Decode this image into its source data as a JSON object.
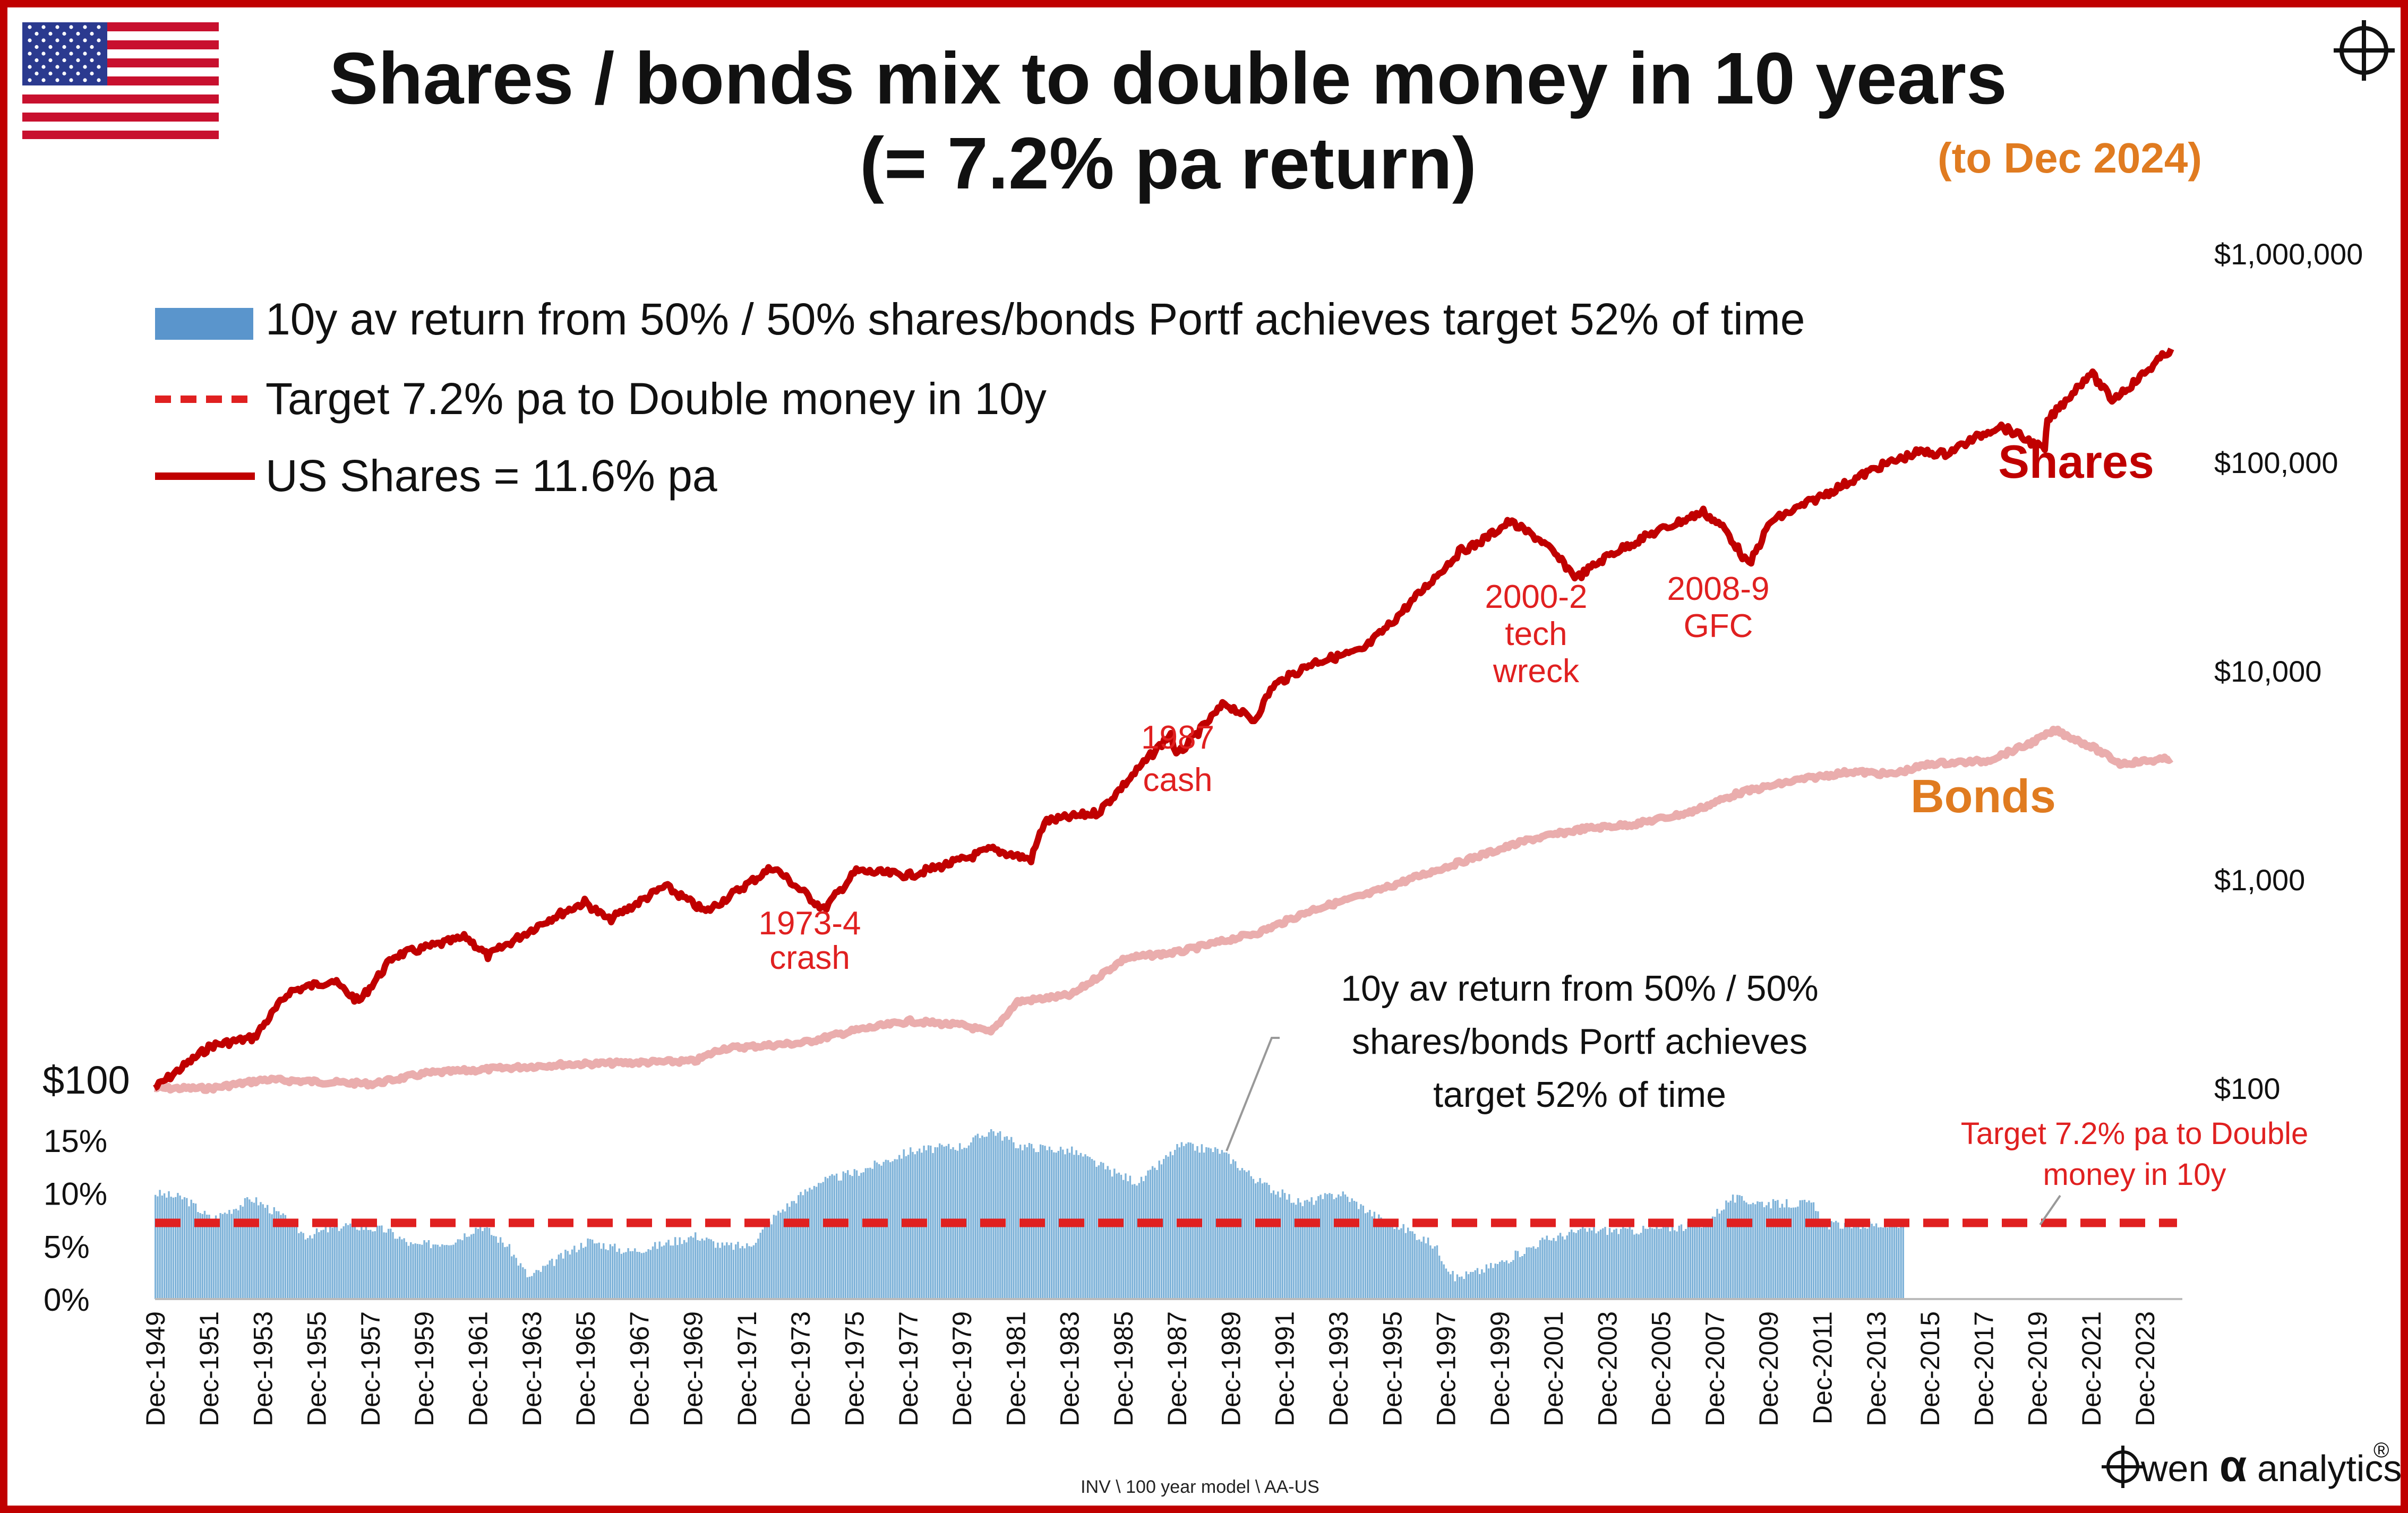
{
  "title_line1": "Shares / bonds mix to double money in 10 years",
  "title_line2": "(= 7.2% pa return)",
  "subtitle": "(to Dec 2024)",
  "legend": {
    "bars": "10y av return from 50% / 50% shares/bonds Portf  achieves target  52% of time",
    "target": "Target 7.2% pa to Double money in 10y",
    "shares": "US Shares = 11.6% pa"
  },
  "labels": {
    "shares": "Shares",
    "bonds": "Bonds",
    "start_value": "$100",
    "callout_bars": [
      "10y av return from 50% / 50%",
      "shares/bonds Portf  achieves",
      "target  52% of time"
    ],
    "callout_target": [
      "Target 7.2% pa to Double",
      "money in 10y"
    ],
    "crash_1973": [
      "1973-4",
      "crash"
    ],
    "crash_1987": [
      "1987",
      "cash"
    ],
    "crash_2000": [
      "2000-2",
      "tech",
      "wreck"
    ],
    "crash_2008": [
      "2008-9",
      "GFC"
    ]
  },
  "footer": {
    "path": "INV \\ 100 year model \\ AA-US",
    "brand_pre": "wen",
    "brand_alpha": "α",
    "brand_post": "analytics",
    "brand_reg": "®"
  },
  "colors": {
    "frame": "#c00000",
    "shares": "#c00000",
    "bonds": "#eaadad",
    "bars": "#7fb3d9",
    "target": "#e02020",
    "subtitle": "#e07b20",
    "annotation": "#e02020"
  },
  "icons": [
    "us-flag-icon",
    "crosshair-logo-icon"
  ],
  "chart_data": [
    {
      "type": "line",
      "title": "Shares / bonds mix to double money in 10 years",
      "y_scale": "log",
      "ylim": [
        100,
        1000000
      ],
      "y_ticks": [
        "$100",
        "$1,000",
        "$10,000",
        "$100,000",
        "$1,000,000"
      ],
      "x_range": [
        1949.92,
        2024.92
      ],
      "series": [
        {
          "name": "US Shares = 11.6% pa",
          "points": [
            [
              1949.9,
              100
            ],
            [
              1952,
              160
            ],
            [
              1953.6,
              175
            ],
            [
              1954.9,
              290
            ],
            [
              1956.5,
              330
            ],
            [
              1957.5,
              260
            ],
            [
              1958.8,
              430
            ],
            [
              1961.5,
              530
            ],
            [
              1962.3,
              430
            ],
            [
              1964.5,
              640
            ],
            [
              1965.9,
              780
            ],
            [
              1966.8,
              640
            ],
            [
              1968.9,
              930
            ],
            [
              1970.4,
              700
            ],
            [
              1972.9,
              1150
            ],
            [
              1974.8,
              720
            ],
            [
              1976,
              1100
            ],
            [
              1978,
              1050
            ],
            [
              1980,
              1250
            ],
            [
              1981,
              1400
            ],
            [
              1982.5,
              1250
            ],
            [
              1983,
              1900
            ],
            [
              1985,
              2100
            ],
            [
              1987.7,
              5000
            ],
            [
              1987.9,
              3900
            ],
            [
              1989.7,
              7000
            ],
            [
              1990.8,
              5800
            ],
            [
              1991.5,
              8500
            ],
            [
              1993,
              11000
            ],
            [
              1994.8,
              12500
            ],
            [
              1995.8,
              16500
            ],
            [
              1997.5,
              28000
            ],
            [
              1998.5,
              38000
            ],
            [
              1999,
              40000
            ],
            [
              2000.3,
              52000
            ],
            [
              2001.5,
              42000
            ],
            [
              2002.8,
              28000
            ],
            [
              2004,
              36000
            ],
            [
              2005.5,
              45000
            ],
            [
              2007.5,
              58000
            ],
            [
              2008.3,
              48000
            ],
            [
              2009.2,
              32000
            ],
            [
              2010,
              52000
            ],
            [
              2012,
              70000
            ],
            [
              2014,
              95000
            ],
            [
              2015.5,
              112000
            ],
            [
              2016.5,
              110000
            ],
            [
              2018.5,
              150000
            ],
            [
              2019,
              140000
            ],
            [
              2020.2,
              115000
            ],
            [
              2020.3,
              158000
            ],
            [
              2021.9,
              270000
            ],
            [
              2022.7,
              200000
            ],
            [
              2023.5,
              240000
            ],
            [
              2024.9,
              350000
            ]
          ]
        },
        {
          "name": "Bonds",
          "points": [
            [
              1949.9,
              100
            ],
            [
              1952,
              100
            ],
            [
              1954,
              110
            ],
            [
              1958,
              105
            ],
            [
              1960,
              118
            ],
            [
              1965,
              130
            ],
            [
              1970,
              135
            ],
            [
              1971,
              155
            ],
            [
              1974,
              165
            ],
            [
              1976,
              190
            ],
            [
              1978,
              210
            ],
            [
              1980,
              200
            ],
            [
              1981,
              185
            ],
            [
              1982,
              260
            ],
            [
              1984,
              280
            ],
            [
              1986,
              420
            ],
            [
              1988,
              450
            ],
            [
              1991,
              560
            ],
            [
              1993,
              720
            ],
            [
              1995,
              850
            ],
            [
              1997,
              1050
            ],
            [
              1999,
              1280
            ],
            [
              2001,
              1550
            ],
            [
              2003,
              1750
            ],
            [
              2005,
              1850
            ],
            [
              2007,
              2100
            ],
            [
              2008.8,
              2600
            ],
            [
              2011,
              3000
            ],
            [
              2013,
              3300
            ],
            [
              2014.5,
              3200
            ],
            [
              2016,
              3600
            ],
            [
              2018,
              3700
            ],
            [
              2019.5,
              4400
            ],
            [
              2020.6,
              5200
            ],
            [
              2022,
              4300
            ],
            [
              2023,
              3600
            ],
            [
              2024.9,
              3800
            ]
          ]
        }
      ]
    },
    {
      "type": "bar",
      "title": "10y av return from 50% / 50% shares/bonds Portf  achieves target  52% of time",
      "ylim": [
        0,
        15
      ],
      "y_ticks": [
        "0%",
        "5%",
        "10%",
        "15%"
      ],
      "target": 7.2,
      "x_tick_labels": [
        "Dec-1949",
        "Dec-1951",
        "Dec-1953",
        "Dec-1955",
        "Dec-1957",
        "Dec-1959",
        "Dec-1961",
        "Dec-1963",
        "Dec-1965",
        "Dec-1967",
        "Dec-1969",
        "Dec-1971",
        "Dec-1973",
        "Dec-1975",
        "Dec-1977",
        "Dec-1979",
        "Dec-1981",
        "Dec-1983",
        "Dec-1985",
        "Dec-1987",
        "Dec-1989",
        "Dec-1991",
        "Dec-1993",
        "Dec-1995",
        "Dec-1997",
        "Dec-1999",
        "Dec-2001",
        "Dec-2003",
        "Dec-2005",
        "Dec-2007",
        "Dec-2009",
        "Dec-2011",
        "Dec-2013",
        "Dec-2015",
        "Dec-2017",
        "Dec-2019",
        "Dec-2021",
        "Dec-2023"
      ],
      "series": [
        {
          "name": "10y av return from 50% / 50% shares/bonds Portf  achieves target  52% of time",
          "points": [
            [
              1949.9,
              10
            ],
            [
              1951,
              9.5
            ],
            [
              1952,
              7.5
            ],
            [
              1953.5,
              9.5
            ],
            [
              1954.5,
              8
            ],
            [
              1955.5,
              6
            ],
            [
              1957,
              7
            ],
            [
              1958.5,
              6.5
            ],
            [
              1959.5,
              5
            ],
            [
              1961,
              5.5
            ],
            [
              1962,
              7
            ],
            [
              1963,
              5
            ],
            [
              1963.8,
              2
            ],
            [
              1965,
              4
            ],
            [
              1966,
              5.5
            ],
            [
              1967.5,
              4.5
            ],
            [
              1968.5,
              5
            ],
            [
              1970,
              6
            ],
            [
              1971,
              5
            ],
            [
              1972,
              5
            ],
            [
              1973,
              8
            ],
            [
              1974.5,
              11
            ],
            [
              1976,
              12
            ],
            [
              1978,
              14
            ],
            [
              1980,
              14.5
            ],
            [
              1981,
              16
            ],
            [
              1982,
              14.5
            ],
            [
              1984,
              14
            ],
            [
              1985.5,
              12
            ],
            [
              1986.5,
              11
            ],
            [
              1988,
              14.5
            ],
            [
              1989.5,
              14
            ],
            [
              1991,
              11
            ],
            [
              1992.5,
              9
            ],
            [
              1994,
              10
            ],
            [
              1995.5,
              7.5
            ],
            [
              1996.5,
              6.5
            ],
            [
              1997.5,
              5
            ],
            [
              1998.2,
              2
            ],
            [
              1999,
              2.5
            ],
            [
              2000,
              3.5
            ],
            [
              2001.5,
              5.5
            ],
            [
              2003,
              6.5
            ],
            [
              2005,
              6.5
            ],
            [
              2007.5,
              7
            ],
            [
              2008.5,
              9.5
            ],
            [
              2010,
              9
            ],
            [
              2011.5,
              9
            ],
            [
              2012,
              7
            ],
            [
              2014.9,
              7
            ]
          ]
        }
      ]
    }
  ]
}
